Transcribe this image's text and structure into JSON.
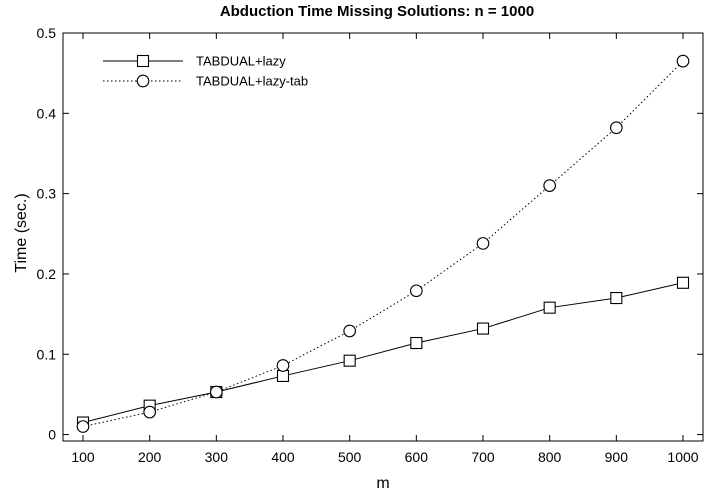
{
  "chart_data": {
    "type": "line",
    "title": "Abduction Time Missing Solutions: n = 1000",
    "xlabel": "m",
    "ylabel": "Time (sec.)",
    "x": [
      100,
      200,
      300,
      400,
      500,
      600,
      700,
      800,
      900,
      1000
    ],
    "xlim": [
      70,
      1030
    ],
    "ylim": [
      -0.008,
      0.5
    ],
    "xticks": [
      100,
      200,
      300,
      400,
      500,
      600,
      700,
      800,
      900,
      1000
    ],
    "yticks": [
      0,
      0.1,
      0.2,
      0.3,
      0.4,
      0.5
    ],
    "ytick_labels": [
      "0",
      "0.1",
      "0.2",
      "0.3",
      "0.4",
      "0.5"
    ],
    "grid": false,
    "legend_position": "top-left",
    "series": [
      {
        "name": "TABDUAL+lazy",
        "marker": "square",
        "line_style": "solid",
        "values": [
          0.015,
          0.036,
          0.053,
          0.073,
          0.092,
          0.114,
          0.132,
          0.158,
          0.17,
          0.189
        ]
      },
      {
        "name": "TABDUAL+lazy-tab",
        "marker": "circle",
        "line_style": "dotted",
        "values": [
          0.01,
          0.028,
          0.053,
          0.086,
          0.129,
          0.179,
          0.238,
          0.31,
          0.382,
          0.465
        ]
      }
    ]
  }
}
